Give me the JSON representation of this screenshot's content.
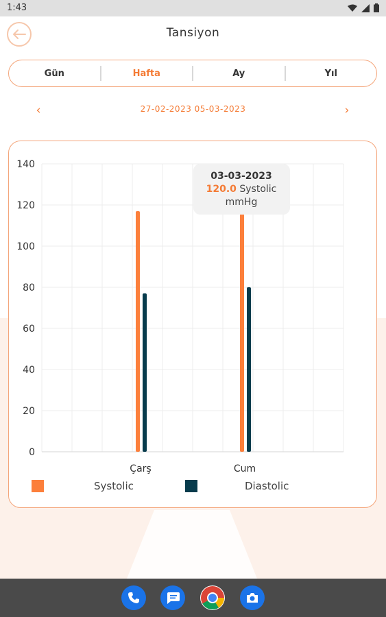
{
  "status_bar": {
    "time": "1:43"
  },
  "header": {
    "title": "Tansiyon"
  },
  "tabs": [
    {
      "label": "Gün",
      "active": false
    },
    {
      "label": "Hafta",
      "active": true
    },
    {
      "label": "Ay",
      "active": false
    },
    {
      "label": "Yıl",
      "active": false
    }
  ],
  "date_range": "27-02-2023 05-03-2023",
  "colors": {
    "accent": "#f47b35",
    "systolic": "#fc7f3b",
    "diastolic": "#073b4c",
    "border": "#f4a57a"
  },
  "chart_data": {
    "type": "bar",
    "title": "",
    "xlabel": "",
    "ylabel": "",
    "ylim": [
      0,
      140
    ],
    "yticks": [
      0,
      20,
      40,
      60,
      80,
      100,
      120,
      140
    ],
    "categories": [
      "Çarş",
      "Cum"
    ],
    "series": [
      {
        "name": "Systolic",
        "values": [
          117,
          120
        ]
      },
      {
        "name": "Diastolic",
        "values": [
          77,
          80
        ]
      }
    ],
    "grid": true,
    "legend": "bottom",
    "tooltip": {
      "date": "03-03-2023",
      "value": "120.0",
      "series": "Systolic",
      "unit": "mmHg"
    }
  },
  "dock": {
    "icons": [
      "phone-icon",
      "messages-icon",
      "chrome-icon",
      "camera-icon"
    ]
  }
}
